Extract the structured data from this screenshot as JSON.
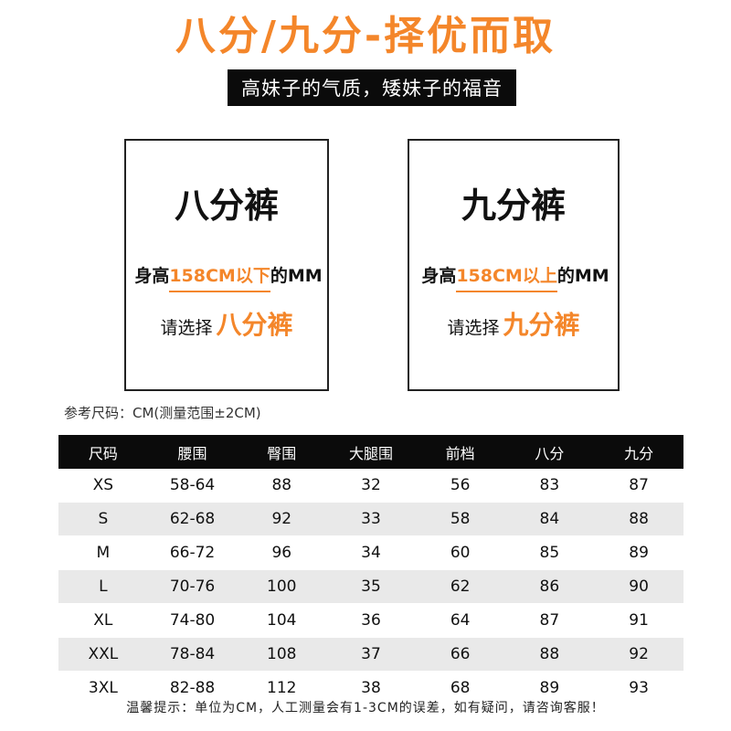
{
  "title": "八分/九分-择优而取",
  "banner": "高妹子的气质，矮妹子的福音",
  "cards": [
    {
      "name": "八分裤",
      "prefix": "身高",
      "height_condition": "158CM以下",
      "suffix": "的MM",
      "choose_text": "请选择",
      "choose_value": "八分裤"
    },
    {
      "name": "九分裤",
      "prefix": "身高",
      "height_condition": "158CM以上",
      "suffix": "的MM",
      "choose_text": "请选择",
      "choose_value": "九分裤"
    }
  ],
  "reference_label": "参考尺码：CM(测量范围±2CM)",
  "table": {
    "headers": [
      "尺码",
      "腰围",
      "臀围",
      "大腿围",
      "前档",
      "八分",
      "九分"
    ],
    "rows": [
      [
        "XS",
        "58-64",
        "88",
        "32",
        "56",
        "83",
        "87"
      ],
      [
        "S",
        "62-68",
        "92",
        "33",
        "58",
        "84",
        "88"
      ],
      [
        "M",
        "66-72",
        "96",
        "34",
        "60",
        "85",
        "89"
      ],
      [
        "L",
        "70-76",
        "100",
        "35",
        "62",
        "86",
        "90"
      ],
      [
        "XL",
        "74-80",
        "104",
        "36",
        "64",
        "87",
        "91"
      ],
      [
        "XXL",
        "78-84",
        "108",
        "37",
        "66",
        "88",
        "92"
      ],
      [
        "3XL",
        "82-88",
        "112",
        "38",
        "68",
        "89",
        "93"
      ]
    ]
  },
  "footer": "温馨提示：单位为CM，人工测量会有1-3CM的误差，如有疑问，请咨询客服！",
  "colors": {
    "accent": "#f4862a",
    "dark": "#0b0b0b",
    "stripe": "#e9e9e9"
  }
}
